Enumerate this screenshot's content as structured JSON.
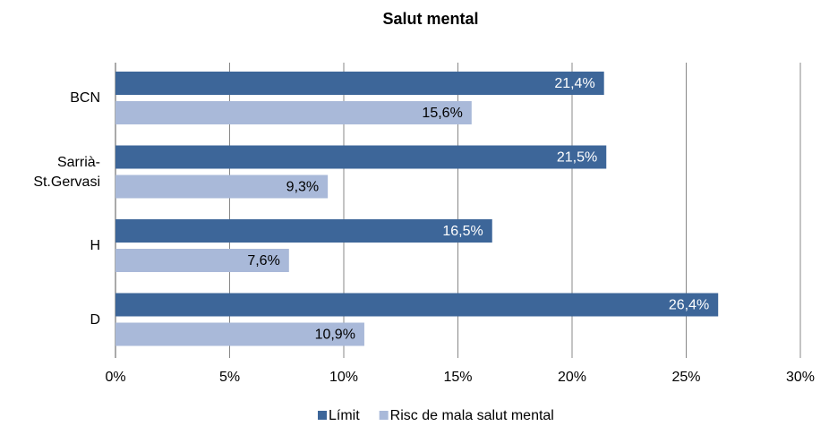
{
  "chart_data": {
    "type": "hbar",
    "title": "Salut mental",
    "categories": [
      "BCN",
      "Sarrià-St.Gervasi",
      "H",
      "D"
    ],
    "series": [
      {
        "name": "Límit",
        "color": "#3d6699",
        "values": [
          21.4,
          21.5,
          16.5,
          26.4
        ],
        "value_labels": [
          "21,4%",
          "21,5%",
          "16,5%",
          "26,4%"
        ]
      },
      {
        "name": "Risc de mala salut mental",
        "color": "#a9b9d9",
        "values": [
          15.6,
          9.3,
          7.6,
          10.9
        ],
        "value_labels": [
          "15,6%",
          "9,3%",
          "7,6%",
          "10,9%"
        ]
      }
    ],
    "xlim": [
      0,
      30
    ],
    "xticks": [
      {
        "value": 0,
        "label": "0%"
      },
      {
        "value": 5,
        "label": "5%"
      },
      {
        "value": 10,
        "label": "10%"
      },
      {
        "value": 15,
        "label": "15%"
      },
      {
        "value": 20,
        "label": "20%"
      },
      {
        "value": 25,
        "label": "25%"
      },
      {
        "value": 30,
        "label": "30%"
      }
    ],
    "grid": true,
    "legend": "bottom"
  }
}
